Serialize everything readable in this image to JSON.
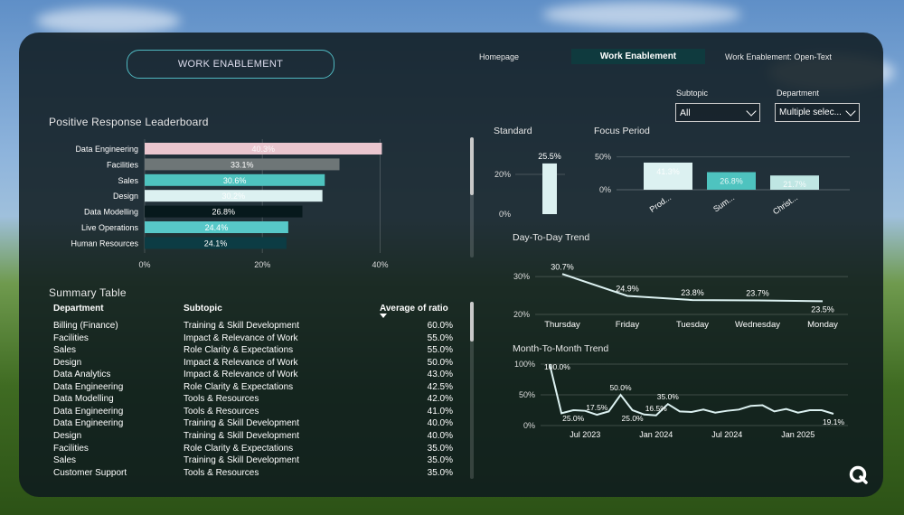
{
  "header": {
    "title": "WORK ENABLEMENT",
    "nav": [
      {
        "label": "Homepage",
        "active": false
      },
      {
        "label": "Work Enablement",
        "active": true
      },
      {
        "label": "Work Enablement: Open-Text",
        "active": false
      }
    ]
  },
  "filters": {
    "subtopic": {
      "label": "Subtopic",
      "value": "All"
    },
    "department": {
      "label": "Department",
      "value": "Multiple selec..."
    }
  },
  "leaderboard": {
    "title": "Positive Response Leaderboard",
    "chart_data": {
      "type": "bar",
      "orientation": "horizontal",
      "categories": [
        "Data Engineering",
        "Facilities",
        "Sales",
        "Design",
        "Data Modelling",
        "Live Operations",
        "Human Resources"
      ],
      "values": [
        40.3,
        33.1,
        30.6,
        30.2,
        26.8,
        24.4,
        24.1
      ],
      "value_labels": [
        "40.3%",
        "33.1%",
        "30.6%",
        "30.2%",
        "26.8%",
        "24.4%",
        "24.1%"
      ],
      "colors": [
        "#eac6cf",
        "#6e7677",
        "#4ec3bf",
        "#dcf1f1",
        "#07191c",
        "#57c8c8",
        "#0c3c44"
      ],
      "x_ticks": [
        "0%",
        "20%",
        "40%"
      ],
      "xlim": [
        0,
        43
      ]
    }
  },
  "standard": {
    "title": "Standard",
    "chart_data": {
      "type": "bar",
      "values": [
        25.5
      ],
      "value_labels": [
        "25.5%"
      ],
      "y_ticks": [
        "20%",
        "0%"
      ],
      "ylim": [
        0,
        30
      ]
    }
  },
  "focus": {
    "title": "Focus Period",
    "chart_data": {
      "type": "bar",
      "categories": [
        "Prod...",
        "Sum...",
        "Christ..."
      ],
      "values": [
        41.3,
        26.8,
        21.7
      ],
      "value_labels": [
        "41.3%",
        "26.8%",
        "21.7%"
      ],
      "colors": [
        "#dcf1f1",
        "#4ec3bf",
        "#bfe6e3"
      ],
      "y_ticks": [
        "50%",
        "0%"
      ],
      "ylim": [
        0,
        55
      ]
    }
  },
  "day_trend": {
    "title": "Day-To-Day Trend",
    "chart_data": {
      "type": "line",
      "categories": [
        "Thursday",
        "Friday",
        "Tuesday",
        "Wednesday",
        "Monday"
      ],
      "values": [
        30.7,
        24.9,
        23.8,
        23.7,
        23.5
      ],
      "value_labels": [
        "30.7%",
        "24.9%",
        "23.8%",
        "23.7%",
        "23.5%"
      ],
      "y_ticks": [
        "30%",
        "20%"
      ],
      "ylim": [
        20,
        31
      ]
    }
  },
  "month_trend": {
    "title": "Month-To-Month Trend",
    "chart_data": {
      "type": "line",
      "values": [
        100,
        20,
        25,
        24,
        17.5,
        23,
        50,
        25,
        18,
        16.5,
        35,
        23,
        22,
        26,
        21,
        24,
        26,
        32,
        33,
        23,
        27,
        21,
        25,
        25,
        19.1
      ],
      "point_labels": [
        {
          "index": 0,
          "label": "100.0%"
        },
        {
          "index": 2,
          "label": "25.0%"
        },
        {
          "index": 4,
          "label": "17.5%"
        },
        {
          "index": 6,
          "label": "50.0%"
        },
        {
          "index": 7,
          "label": "25.0%"
        },
        {
          "index": 9,
          "label": "16.5%"
        },
        {
          "index": 10,
          "label": "35.0%"
        },
        {
          "index": 24,
          "label": "19.1%"
        }
      ],
      "x_ticks": [
        "Jul 2023",
        "Jan 2024",
        "Jul 2024",
        "Jan 2025"
      ],
      "x_tick_index": [
        3,
        9,
        15,
        21
      ],
      "y_ticks": [
        "100%",
        "50%",
        "0%"
      ],
      "ylim": [
        0,
        100
      ]
    }
  },
  "summary": {
    "title": "Summary Table",
    "columns": [
      "Department",
      "Subtopic",
      "Average of ratio"
    ],
    "rows": [
      [
        "Billing (Finance)",
        "Training & Skill Development",
        "60.0%"
      ],
      [
        "Facilities",
        "Impact & Relevance of Work",
        "55.0%"
      ],
      [
        "Sales",
        "Role Clarity & Expectations",
        "55.0%"
      ],
      [
        "Design",
        "Impact & Relevance of Work",
        "50.0%"
      ],
      [
        "Data Analytics",
        "Impact & Relevance of Work",
        "43.0%"
      ],
      [
        "Data Engineering",
        "Role Clarity & Expectations",
        "42.5%"
      ],
      [
        "Data Modelling",
        "Tools & Resources",
        "42.0%"
      ],
      [
        "Data Engineering",
        "Tools & Resources",
        "41.0%"
      ],
      [
        "Data Engineering",
        "Training & Skill Development",
        "40.0%"
      ],
      [
        "Design",
        "Training & Skill Development",
        "40.0%"
      ],
      [
        "Facilities",
        "Role Clarity & Expectations",
        "35.0%"
      ],
      [
        "Sales",
        "Training & Skill Development",
        "35.0%"
      ],
      [
        "Customer Support",
        "Tools & Resources",
        "35.0%"
      ]
    ]
  },
  "colors": {
    "accent": "#4ec3bf",
    "line": "#dcf1f1",
    "panel": "#0e1a1e"
  },
  "icons": {
    "logo": "q-logo-icon",
    "sort": "sort-desc-icon"
  }
}
